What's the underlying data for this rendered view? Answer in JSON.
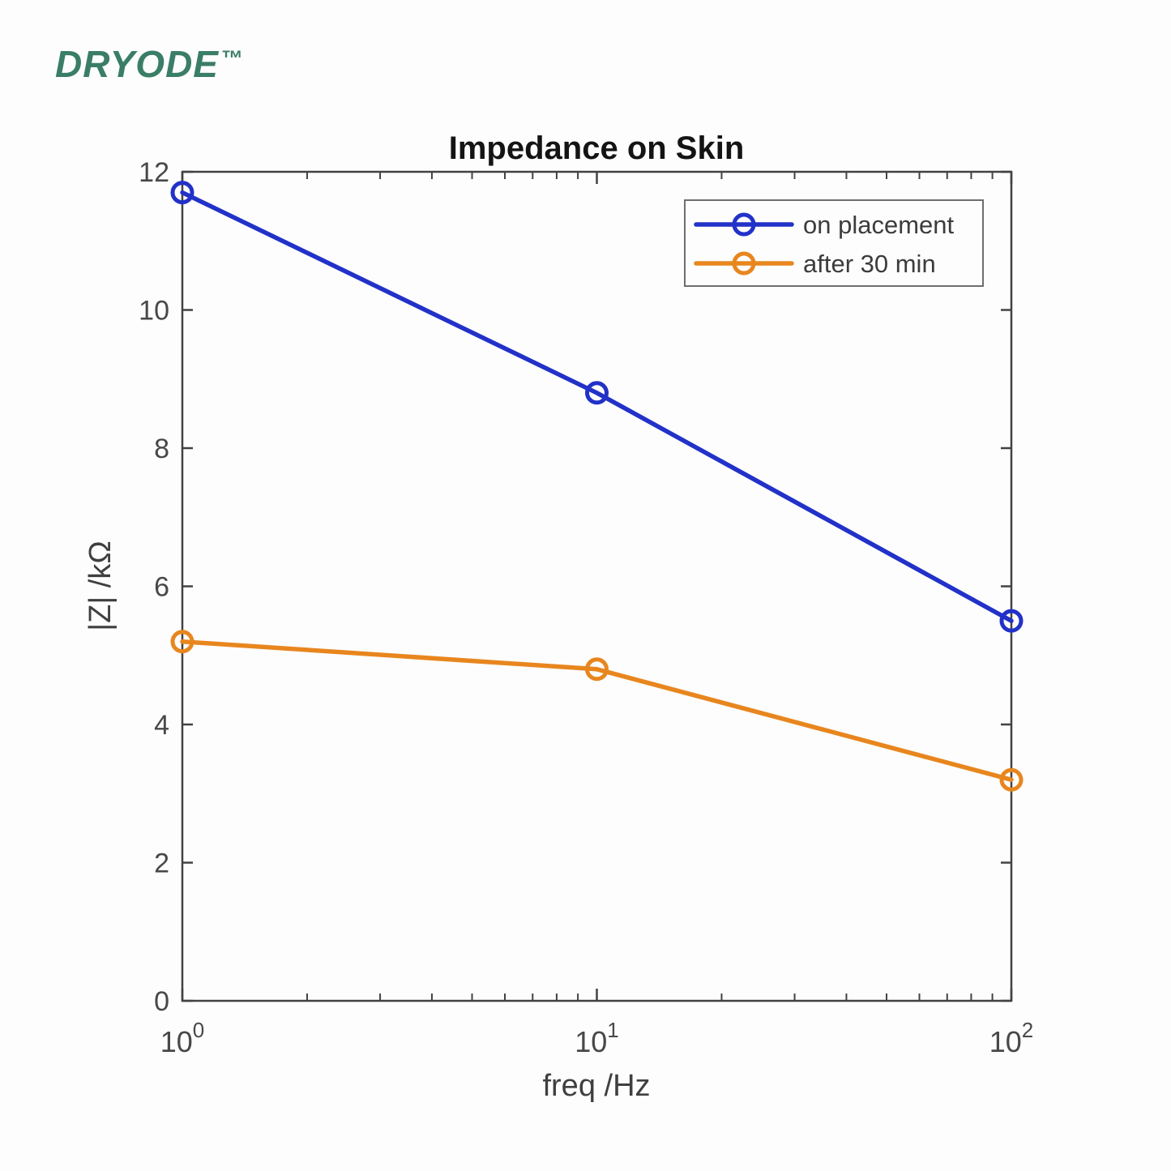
{
  "logo": {
    "text": "DRYODE",
    "tm": "™",
    "color": "#3A7D68"
  },
  "chart_data": {
    "type": "line",
    "title": "Impedance on Skin",
    "xlabel": "freq /Hz",
    "ylabel": "|Z| /kΩ",
    "xscale": "log",
    "xlim": [
      1,
      100
    ],
    "ylim": [
      0,
      12
    ],
    "yticks": [
      0,
      2,
      4,
      6,
      8,
      10,
      12
    ],
    "xticks": [
      {
        "value": 1,
        "base": "10",
        "exponent": "0"
      },
      {
        "value": 10,
        "base": "10",
        "exponent": "1"
      },
      {
        "value": 100,
        "base": "10",
        "exponent": "2"
      }
    ],
    "minor_xticks": [
      2,
      3,
      4,
      5,
      6,
      7,
      8,
      9,
      20,
      30,
      40,
      50,
      60,
      70,
      80,
      90
    ],
    "x": [
      1,
      10,
      100
    ],
    "series": [
      {
        "name": "on placement",
        "color": "#2231C8",
        "marker": "circle",
        "values": [
          11.7,
          8.8,
          5.5
        ]
      },
      {
        "name": "after 30 min",
        "color": "#E8861E",
        "marker": "circle",
        "values": [
          5.2,
          4.8,
          3.2
        ]
      }
    ],
    "legend_position": "top-right",
    "grid": false,
    "box": true,
    "axis_color": "#424242",
    "legend_border_color": "#6E6E6E",
    "background": "#FDFDFD"
  }
}
